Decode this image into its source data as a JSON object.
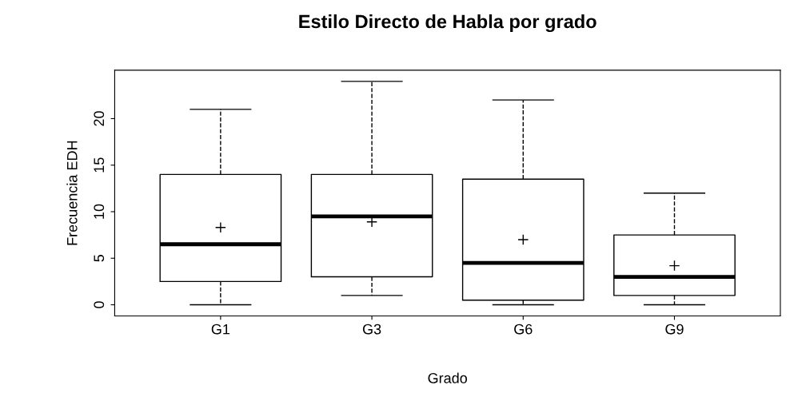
{
  "chart_data": {
    "type": "box",
    "title": "Estilo Directo de Habla por grado",
    "xlabel": "Grado",
    "ylabel": "Frecuencia EDH",
    "categories": [
      "G1",
      "G3",
      "G6",
      "G9"
    ],
    "boxes": [
      {
        "low": 0,
        "q1": 2.5,
        "median": 6.5,
        "q3": 14,
        "high": 21,
        "mean": 8.3
      },
      {
        "low": 1,
        "q1": 3,
        "median": 9.5,
        "q3": 14,
        "high": 24,
        "mean": 8.9
      },
      {
        "low": 0,
        "q1": 0.5,
        "median": 4.5,
        "q3": 13.5,
        "high": 22,
        "mean": 7
      },
      {
        "low": 0,
        "q1": 1,
        "median": 3,
        "q3": 7.5,
        "high": 12,
        "mean": 4.2
      }
    ],
    "ylim": [
      -1.2,
      25.2
    ],
    "yticks": [
      0,
      5,
      10,
      15,
      20
    ],
    "grid": false,
    "legend": false,
    "color": "#000000"
  }
}
